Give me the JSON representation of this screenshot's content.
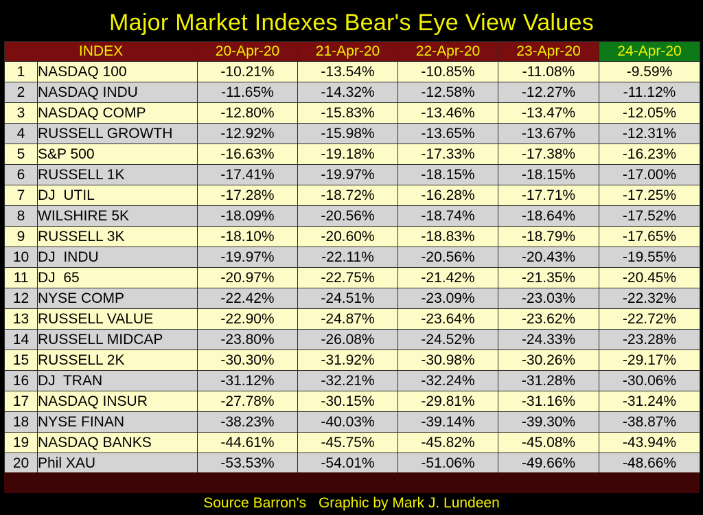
{
  "title": "Major Market Indexes Bear's Eye View Values",
  "footer": {
    "source": "Source Barron's",
    "credit": "Graphic by Mark J. Lundeen"
  },
  "colors": {
    "header_bg": "#7a0d0d",
    "highlight_header_bg": "#0c7a16",
    "title_text": "#f2f200",
    "row_odd": "#fdfcc6",
    "row_even": "#d4d4d4",
    "footer_band": "#3d0505"
  },
  "chart_data": {
    "type": "table",
    "title": "Major Market Indexes Bear's Eye View Values",
    "index_header": "INDEX",
    "columns": [
      "20-Apr-20",
      "21-Apr-20",
      "22-Apr-20",
      "23-Apr-20",
      "24-Apr-20"
    ],
    "highlight_column": "24-Apr-20",
    "rows": [
      {
        "rank": "1",
        "name": "NASDAQ 100",
        "values": [
          "-10.21%",
          "-13.54%",
          "-10.85%",
          "-11.08%",
          "-9.59%"
        ]
      },
      {
        "rank": "2",
        "name": "NASDAQ INDU",
        "values": [
          "-11.65%",
          "-14.32%",
          "-12.58%",
          "-12.27%",
          "-11.12%"
        ]
      },
      {
        "rank": "3",
        "name": "NASDAQ COMP",
        "values": [
          "-12.80%",
          "-15.83%",
          "-13.46%",
          "-13.47%",
          "-12.05%"
        ]
      },
      {
        "rank": "4",
        "name": "RUSSELL GROWTH",
        "values": [
          "-12.92%",
          "-15.98%",
          "-13.65%",
          "-13.67%",
          "-12.31%"
        ]
      },
      {
        "rank": "5",
        "name": "S&P 500",
        "values": [
          "-16.63%",
          "-19.18%",
          "-17.33%",
          "-17.38%",
          "-16.23%"
        ]
      },
      {
        "rank": "6",
        "name": "RUSSELL 1K",
        "values": [
          "-17.41%",
          "-19.97%",
          "-18.15%",
          "-18.15%",
          "-17.00%"
        ]
      },
      {
        "rank": "7",
        "name": "DJ  UTIL",
        "values": [
          "-17.28%",
          "-18.72%",
          "-16.28%",
          "-17.71%",
          "-17.25%"
        ]
      },
      {
        "rank": "8",
        "name": "WILSHIRE 5K",
        "values": [
          "-18.09%",
          "-20.56%",
          "-18.74%",
          "-18.64%",
          "-17.52%"
        ]
      },
      {
        "rank": "9",
        "name": "RUSSELL 3K",
        "values": [
          "-18.10%",
          "-20.60%",
          "-18.83%",
          "-18.79%",
          "-17.65%"
        ]
      },
      {
        "rank": "10",
        "name": "DJ  INDU",
        "values": [
          "-19.97%",
          "-22.11%",
          "-20.56%",
          "-20.43%",
          "-19.55%"
        ]
      },
      {
        "rank": "11",
        "name": "DJ  65",
        "values": [
          "-20.97%",
          "-22.75%",
          "-21.42%",
          "-21.35%",
          "-20.45%"
        ]
      },
      {
        "rank": "12",
        "name": "NYSE COMP",
        "values": [
          "-22.42%",
          "-24.51%",
          "-23.09%",
          "-23.03%",
          "-22.32%"
        ]
      },
      {
        "rank": "13",
        "name": "RUSSELL VALUE",
        "values": [
          "-22.90%",
          "-24.87%",
          "-23.64%",
          "-23.62%",
          "-22.72%"
        ]
      },
      {
        "rank": "14",
        "name": "RUSSELL MIDCAP",
        "values": [
          "-23.80%",
          "-26.08%",
          "-24.52%",
          "-24.33%",
          "-23.28%"
        ]
      },
      {
        "rank": "15",
        "name": "RUSSELL 2K",
        "values": [
          "-30.30%",
          "-31.92%",
          "-30.98%",
          "-30.26%",
          "-29.17%"
        ]
      },
      {
        "rank": "16",
        "name": "DJ  TRAN",
        "values": [
          "-31.12%",
          "-32.21%",
          "-32.24%",
          "-31.28%",
          "-30.06%"
        ]
      },
      {
        "rank": "17",
        "name": "NASDAQ INSUR",
        "values": [
          "-27.78%",
          "-30.15%",
          "-29.81%",
          "-31.16%",
          "-31.24%"
        ]
      },
      {
        "rank": "18",
        "name": "NYSE FINAN",
        "values": [
          "-38.23%",
          "-40.03%",
          "-39.14%",
          "-39.30%",
          "-38.87%"
        ]
      },
      {
        "rank": "19",
        "name": "NASDAQ BANKS",
        "values": [
          "-44.61%",
          "-45.75%",
          "-45.82%",
          "-45.08%",
          "-43.94%"
        ]
      },
      {
        "rank": "20",
        "name": "Phil XAU",
        "values": [
          "-53.53%",
          "-54.01%",
          "-51.06%",
          "-49.66%",
          "-48.66%"
        ]
      }
    ]
  }
}
